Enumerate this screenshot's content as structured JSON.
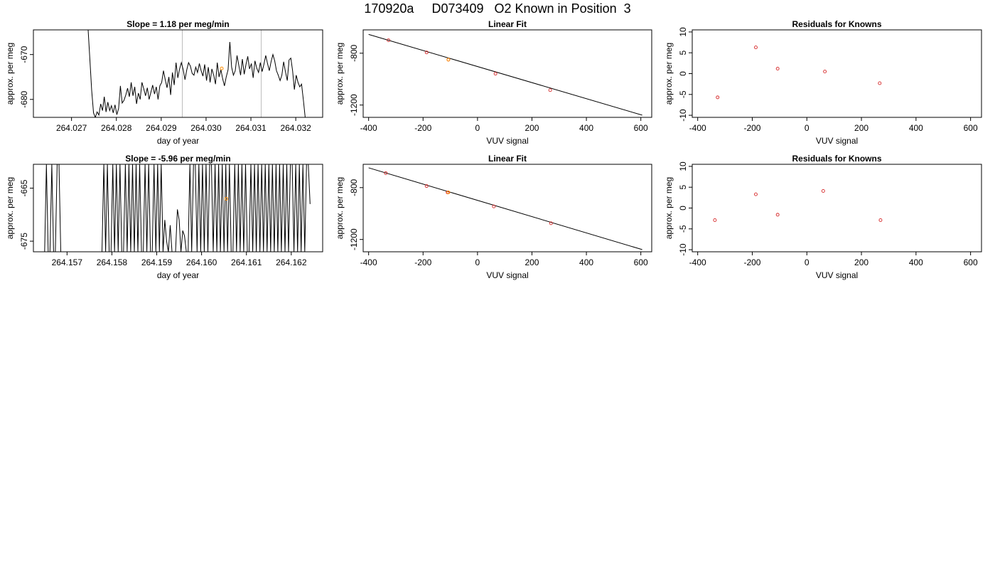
{
  "page_title": "170920a     D073409   O2 Known in Position  3",
  "chart_data": [
    {
      "id": "ts1",
      "type": "line",
      "title": "Slope =  1.18  per meg/min",
      "xlabel": "day of year",
      "ylabel": "approx. per meg",
      "xlim": [
        264.02615,
        264.0326
      ],
      "ylim": [
        -684.0,
        -664.5
      ],
      "xticks": [
        264.027,
        264.028,
        264.029,
        264.03,
        264.031,
        264.032
      ],
      "xtick_labels": [
        "264.027",
        "264.028",
        "264.029",
        "264.030",
        "264.031",
        "264.032"
      ],
      "yticks": [
        -670,
        -680
      ],
      "ytick_labels": [
        "-670",
        "-680"
      ],
      "vlines": [
        264.02947,
        264.03123
      ],
      "line_color": "#000000",
      "vline_color": "#bdbdbd",
      "marker": {
        "x": 264.03035,
        "y": -673.1,
        "color": "#ff8c00"
      },
      "series": [
        {
          "x": [
            264.02737,
            264.02741,
            264.02745,
            264.02749,
            264.02753,
            264.02757,
            264.02761,
            264.02765,
            264.02769,
            264.02773,
            264.02777,
            264.02781,
            264.02785,
            264.02789,
            264.02793,
            264.02797,
            264.02801,
            264.02805,
            264.02809,
            264.02813,
            264.02817,
            264.02821,
            264.02825,
            264.02829,
            264.02833,
            264.02837,
            264.02841,
            264.02845,
            264.02849,
            264.02853,
            264.02857,
            264.02861,
            264.02865,
            264.02869,
            264.02873,
            264.02877,
            264.02881,
            264.02885,
            264.02889,
            264.02893,
            264.02897,
            264.02901,
            264.02905,
            264.02909,
            264.02913,
            264.02917,
            264.02921,
            264.02925,
            264.02929,
            264.02933,
            264.02937,
            264.02941,
            264.02945,
            264.02949,
            264.02953,
            264.02957,
            264.02961,
            264.02965,
            264.02969,
            264.02973,
            264.02977,
            264.02981,
            264.02985,
            264.02989,
            264.02993,
            264.02997,
            264.03001,
            264.03005,
            264.03009,
            264.03013,
            264.03017,
            264.03021,
            264.03025,
            264.03029,
            264.03033,
            264.03037,
            264.03041,
            264.03045,
            264.03049,
            264.03053,
            264.03057,
            264.03061,
            264.03065,
            264.03069,
            264.03073,
            264.03077,
            264.03081,
            264.03085,
            264.03089,
            264.03093,
            264.03097,
            264.03101,
            264.03105,
            264.03109,
            264.03113,
            264.03117,
            264.03121,
            264.03125,
            264.03129,
            264.03133,
            264.03137,
            264.03141,
            264.03145,
            264.03149,
            264.03153,
            264.03157,
            264.03161,
            264.03165,
            264.03169,
            264.03173,
            264.03177,
            264.03181,
            264.03185,
            264.03189,
            264.03193,
            264.03197,
            264.03201,
            264.03205,
            264.03209,
            264.03213,
            264.03217,
            264.03221
          ],
          "y": [
            -664.5,
            -671.2,
            -678.0,
            -683.0,
            -684.0,
            -682.8,
            -683.5,
            -681.0,
            -682.5,
            -679.4,
            -682.8,
            -680.6,
            -682.5,
            -681.4,
            -683.0,
            -681.2,
            -683.4,
            -682.0,
            -677.0,
            -680.8,
            -680.2,
            -679.0,
            -677.5,
            -679.4,
            -676.2,
            -679.2,
            -677.2,
            -681.0,
            -678.6,
            -680.0,
            -676.2,
            -677.6,
            -679.2,
            -677.4,
            -680.0,
            -678.4,
            -676.8,
            -678.8,
            -677.2,
            -680.0,
            -677.0,
            -676.2,
            -673.6,
            -675.6,
            -677.4,
            -675.0,
            -679.0,
            -674.0,
            -676.8,
            -671.8,
            -675.2,
            -673.2,
            -671.8,
            -673.4,
            -675.6,
            -673.4,
            -671.8,
            -672.6,
            -674.2,
            -674.6,
            -672.8,
            -674.0,
            -672.0,
            -673.6,
            -674.8,
            -672.2,
            -675.8,
            -672.8,
            -676.2,
            -673.2,
            -674.6,
            -676.6,
            -671.8,
            -675.0,
            -673.4,
            -675.4,
            -677.0,
            -675.0,
            -673.4,
            -667.2,
            -672.8,
            -674.6,
            -673.6,
            -670.2,
            -672.4,
            -674.6,
            -671.0,
            -674.4,
            -672.2,
            -670.4,
            -673.2,
            -672.0,
            -675.2,
            -671.4,
            -673.0,
            -674.0,
            -671.8,
            -673.8,
            -672.2,
            -670.2,
            -672.0,
            -673.6,
            -671.6,
            -670.0,
            -671.4,
            -673.6,
            -674.6,
            -675.8,
            -674.6,
            -671.6,
            -673.8,
            -675.8,
            -671.2,
            -670.8,
            -673.6,
            -677.8,
            -674.6,
            -676.2,
            -677.2,
            -676.6,
            -680.2,
            -684.0
          ]
        }
      ]
    },
    {
      "id": "fit1",
      "type": "scatter",
      "title": "Linear Fit",
      "xlabel": "VUV signal",
      "ylabel": "approx. per meg",
      "xlim": [
        -420,
        640
      ],
      "ylim": [
        -1295,
        -620
      ],
      "xticks": [
        -400,
        -200,
        0,
        200,
        400,
        600
      ],
      "xtick_labels": [
        "-400",
        "-200",
        "0",
        "200",
        "400",
        "600"
      ],
      "yticks": [
        -800,
        -1200
      ],
      "ytick_labels": [
        "-800",
        "-1200"
      ],
      "fit_line": {
        "x": [
          -400,
          605
        ],
        "y": [
          -655,
          -1278
        ]
      },
      "points": [
        {
          "x": -327,
          "y": -700,
          "color": "#d62728"
        },
        {
          "x": -187,
          "y": -794,
          "color": "#d62728"
        },
        {
          "x": -107,
          "y": -850,
          "color": "#d62728"
        },
        {
          "x": 66,
          "y": -958,
          "color": "#d62728"
        },
        {
          "x": 267,
          "y": -1085,
          "color": "#d62728"
        }
      ],
      "highlight": {
        "x": -107,
        "y": -850,
        "color": "#ff8c00"
      }
    },
    {
      "id": "res1",
      "type": "scatter",
      "title": "Residuals for Knowns",
      "xlabel": "VUV signal",
      "ylabel": "approx. per meg",
      "xlim": [
        -420,
        640
      ],
      "ylim": [
        -10.5,
        10.5
      ],
      "xticks": [
        -400,
        -200,
        0,
        200,
        400,
        600
      ],
      "xtick_labels": [
        "-400",
        "-200",
        "0",
        "200",
        "400",
        "600"
      ],
      "yticks": [
        10,
        5,
        0,
        -5,
        -10
      ],
      "ytick_labels": [
        "10",
        "5",
        "0",
        "-5",
        "-10"
      ],
      "points": [
        {
          "x": -327,
          "y": -5.7,
          "color": "#d62728"
        },
        {
          "x": -187,
          "y": 6.3,
          "color": "#d62728"
        },
        {
          "x": -107,
          "y": 1.2,
          "color": "#d62728"
        },
        {
          "x": 66,
          "y": 0.5,
          "color": "#d62728"
        },
        {
          "x": 267,
          "y": -2.3,
          "color": "#d62728"
        }
      ]
    },
    {
      "id": "ts2",
      "type": "line",
      "title": "Slope =  -5.96  per meg/min",
      "xlabel": "day of year",
      "ylabel": "approx. per meg",
      "xlim": [
        264.15625,
        264.1627
      ],
      "ylim": [
        -677.0,
        -660.5
      ],
      "xticks": [
        264.157,
        264.158,
        264.159,
        264.16,
        264.161,
        264.162
      ],
      "xtick_labels": [
        "264.157",
        "264.158",
        "264.159",
        "264.160",
        "264.161",
        "264.162"
      ],
      "yticks": [
        -665,
        -675
      ],
      "ytick_labels": [
        "-665",
        "-675"
      ],
      "line_color": "#000000",
      "marker": {
        "x": 264.16055,
        "y": -667.0,
        "color": "#ff8c00"
      },
      "series": [
        {
          "x": [
            264.1565,
            264.15654,
            264.15658,
            264.15662,
            264.15666,
            264.1567,
            264.15674,
            264.15678,
            264.15682,
            264.15686,
            264.1569,
            264.15694,
            264.15698,
            264.15702,
            264.15706,
            264.1571,
            264.15714,
            264.15718,
            264.15722,
            264.15726,
            264.1573,
            264.15734,
            264.15738,
            264.15742,
            264.15746,
            264.1575,
            264.15754,
            264.15758,
            264.15762,
            264.15766,
            264.1577,
            264.15774,
            264.15778,
            264.15782,
            264.15786,
            264.1579,
            264.15794,
            264.15798,
            264.15802,
            264.15806,
            264.1581,
            264.15814,
            264.15818,
            264.15822,
            264.15826,
            264.1583,
            264.15834,
            264.15838,
            264.15842,
            264.15846,
            264.1585,
            264.15854,
            264.15858,
            264.15862,
            264.15866,
            264.1587,
            264.15874,
            264.15878,
            264.15882,
            264.15886,
            264.1589,
            264.15894,
            264.15898,
            264.15902,
            264.15906,
            264.1591,
            264.15914,
            264.15918,
            264.15922,
            264.15926,
            264.1593,
            264.15934,
            264.15938,
            264.15942,
            264.15946,
            264.1595,
            264.15954,
            264.15958,
            264.15962,
            264.15966,
            264.1597,
            264.15974,
            264.15978,
            264.15982,
            264.15986,
            264.1599,
            264.15994,
            264.15998,
            264.16002,
            264.16006,
            264.1601,
            264.16014,
            264.16018,
            264.16022,
            264.16026,
            264.1603,
            264.16034,
            264.16038,
            264.16042,
            264.16046,
            264.1605,
            264.16054,
            264.16058,
            264.16062,
            264.16066,
            264.1607,
            264.16074,
            264.16078,
            264.16082,
            264.16086,
            264.1609,
            264.16094,
            264.16098,
            264.16102,
            264.16106,
            264.1611,
            264.16114,
            264.16118,
            264.16122,
            264.16126,
            264.1613,
            264.16134,
            264.16138,
            264.16142,
            264.16146,
            264.1615,
            264.16154,
            264.16158,
            264.16162,
            264.16166,
            264.1617,
            264.16174,
            264.16178,
            264.16182,
            264.16186,
            264.1619,
            264.16194,
            264.16198,
            264.16202,
            264.16206,
            264.1621,
            264.16214,
            264.16218,
            264.16222,
            264.16226,
            264.1623,
            264.16234,
            264.16238,
            264.16242
          ],
          "y": [
            -677,
            -660.5,
            -677,
            -677,
            -660.5,
            -677,
            -677,
            -660.5,
            -660.5,
            -677,
            -677,
            -677,
            -677,
            -677,
            -677,
            -677,
            -677,
            -677,
            -677,
            -677,
            -677,
            -677,
            -677,
            -677,
            -677,
            -677,
            -677,
            -677,
            -677,
            -677,
            -677,
            -677,
            -677,
            -660.5,
            -677,
            -660.5,
            -677,
            -677,
            -660.5,
            -677,
            -660.5,
            -677,
            -660.5,
            -677,
            -677,
            -660.5,
            -677,
            -660.5,
            -677,
            -660.5,
            -677,
            -660.5,
            -677,
            -660.5,
            -677,
            -677,
            -660.5,
            -677,
            -660.5,
            -677,
            -677,
            -660.5,
            -677,
            -660.5,
            -677,
            -660.5,
            -677,
            -671.0,
            -675.0,
            -677,
            -672.0,
            -677,
            -677,
            -677,
            -669.0,
            -671.0,
            -677,
            -673.0,
            -674.0,
            -677,
            -677,
            -660.5,
            -677,
            -660.5,
            -660.5,
            -677,
            -660.5,
            -677,
            -660.5,
            -677,
            -660.5,
            -677,
            -660.5,
            -660.5,
            -677,
            -660.5,
            -677,
            -660.5,
            -677,
            -660.5,
            -677,
            -660.5,
            -677,
            -660.5,
            -677,
            -677,
            -660.5,
            -677,
            -660.5,
            -677,
            -660.5,
            -677,
            -660.5,
            -677,
            -677,
            -660.5,
            -677,
            -660.5,
            -677,
            -660.5,
            -677,
            -660.5,
            -677,
            -660.5,
            -677,
            -660.5,
            -677,
            -660.5,
            -677,
            -660.5,
            -677,
            -660.5,
            -677,
            -660.5,
            -677,
            -660.5,
            -677,
            -660.5,
            -660.5,
            -677,
            -660.5,
            -677,
            -660.5,
            -677,
            -660.5,
            -677,
            -660.5,
            -660.5,
            -668.0
          ]
        }
      ]
    },
    {
      "id": "fit2",
      "type": "scatter",
      "title": "Linear Fit",
      "xlabel": "VUV signal",
      "ylabel": "approx. per meg",
      "xlim": [
        -420,
        640
      ],
      "ylim": [
        -1295,
        -620
      ],
      "xticks": [
        -400,
        -200,
        0,
        200,
        400,
        600
      ],
      "xtick_labels": [
        "-400",
        "-200",
        "0",
        "200",
        "400",
        "600"
      ],
      "yticks": [
        -800,
        -1200
      ],
      "ytick_labels": [
        "-800",
        "-1200"
      ],
      "fit_line": {
        "x": [
          -400,
          605
        ],
        "y": [
          -647,
          -1278
        ]
      },
      "points": [
        {
          "x": -337,
          "y": -688,
          "color": "#d62728"
        },
        {
          "x": -187,
          "y": -788,
          "color": "#d62728"
        },
        {
          "x": -110,
          "y": -837,
          "color": "#d62728"
        },
        {
          "x": 60,
          "y": -945,
          "color": "#d62728"
        },
        {
          "x": 270,
          "y": -1075,
          "color": "#d62728"
        }
      ],
      "highlight": {
        "x": -107,
        "y": -837,
        "color": "#ff8c00"
      }
    },
    {
      "id": "res2",
      "type": "scatter",
      "title": "Residuals for Knowns",
      "xlabel": "VUV signal",
      "ylabel": "approx. per meg",
      "xlim": [
        -420,
        640
      ],
      "ylim": [
        -10.5,
        10.5
      ],
      "xticks": [
        -400,
        -200,
        0,
        200,
        400,
        600
      ],
      "xtick_labels": [
        "-400",
        "-200",
        "0",
        "200",
        "400",
        "600"
      ],
      "yticks": [
        10,
        5,
        0,
        -5,
        -10
      ],
      "ytick_labels": [
        "10",
        "5",
        "0",
        "-5",
        "-10"
      ],
      "points": [
        {
          "x": -337,
          "y": -2.9,
          "color": "#d62728"
        },
        {
          "x": -187,
          "y": 3.3,
          "color": "#d62728"
        },
        {
          "x": -107,
          "y": -1.6,
          "color": "#d62728"
        },
        {
          "x": 60,
          "y": 4.1,
          "color": "#d62728"
        },
        {
          "x": 270,
          "y": -2.9,
          "color": "#d62728"
        }
      ]
    }
  ]
}
